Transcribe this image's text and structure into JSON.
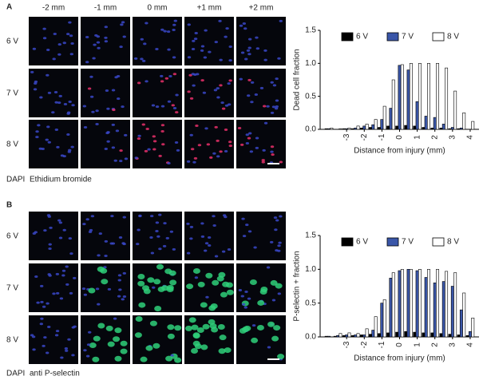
{
  "panels": [
    {
      "label": "A",
      "columns": [
        "-2 mm",
        "-1 mm",
        "0 mm",
        "+1 mm",
        "+2 mm"
      ],
      "rows": [
        "6 V",
        "7 V",
        "8 V"
      ],
      "stains": [
        "DAPI",
        "Ethidium bromide"
      ]
    },
    {
      "label": "B",
      "columns": [],
      "rows": [
        "6 V",
        "7 V",
        "8 V"
      ],
      "stains": [
        "DAPI",
        "anti P-selectin"
      ]
    }
  ],
  "chart_data": [
    {
      "type": "bar",
      "ylabel": "Dead cell fraction",
      "xlabel": "Distance from injury (mm)",
      "x": [
        -4,
        -3.5,
        -3,
        -2.5,
        -2,
        -1.5,
        -1,
        -0.5,
        0,
        0.5,
        1,
        1.5,
        2,
        2.5,
        3,
        3.5,
        4
      ],
      "xlim": [
        -4.5,
        4.5
      ],
      "xticks": [
        -3,
        -2,
        -1,
        {
          "value": 0,
          "label": "0",
          "color": "#e0261e"
        },
        1,
        2,
        3,
        4
      ],
      "ylim": [
        0,
        1.5
      ],
      "yticks": [
        {
          "value": 0,
          "label": "0.0"
        },
        0.5,
        {
          "value": 1,
          "label": "1.0"
        },
        1.5
      ],
      "legend": "top",
      "series": [
        {
          "name": "6 V",
          "color": "#000000",
          "values": [
            0.01,
            0,
            0.01,
            0.01,
            0.02,
            0.03,
            0.03,
            0.05,
            0.05,
            0.06,
            0.05,
            0.03,
            0.02,
            0.02,
            0.01,
            0.01,
            0
          ]
        },
        {
          "name": "7 V",
          "color": "#3a56a8",
          "values": [
            0.01,
            0,
            0.01,
            0.02,
            0.05,
            0.07,
            0.15,
            0.32,
            0.97,
            0.9,
            0.42,
            0.2,
            0.18,
            0.08,
            0.03,
            0.02,
            0
          ]
        },
        {
          "name": "8 V",
          "color": "#ffffff",
          "values": [
            0.02,
            0.01,
            0.02,
            0.05,
            0.08,
            0.15,
            0.35,
            0.75,
            0.98,
            1.0,
            1.0,
            1.0,
            1.0,
            0.93,
            0.58,
            0.25,
            0.12
          ]
        }
      ]
    },
    {
      "type": "bar",
      "ylabel": "P-selectin + fraction",
      "xlabel": "Distance from injury (mm)",
      "x": [
        -4,
        -3.5,
        -3,
        -2.5,
        -2,
        -1.5,
        -1,
        -0.5,
        0,
        0.5,
        1,
        1.5,
        2,
        2.5,
        3,
        3.5,
        4
      ],
      "xlim": [
        -4.5,
        4.5
      ],
      "xticks": [
        -3,
        -2,
        -1,
        {
          "value": 0,
          "label": "0",
          "color": "#e0261e"
        },
        1,
        2,
        3,
        4
      ],
      "ylim": [
        0,
        1.5
      ],
      "yticks": [
        {
          "value": 0,
          "label": "0.0"
        },
        0.5,
        {
          "value": 1,
          "label": "1.0"
        },
        1.5
      ],
      "legend": "top",
      "series": [
        {
          "name": "6 V",
          "color": "#000000",
          "values": [
            0.01,
            0.01,
            0.02,
            0.02,
            0.03,
            0.04,
            0.05,
            0.06,
            0.07,
            0.08,
            0.07,
            0.06,
            0.06,
            0.05,
            0.04,
            0.03,
            0.02
          ]
        },
        {
          "name": "7 V",
          "color": "#3a56a8",
          "values": [
            0.01,
            0.02,
            0.03,
            0.03,
            0.03,
            0.1,
            0.5,
            0.87,
            0.98,
            1.0,
            0.98,
            0.88,
            0.8,
            0.82,
            0.75,
            0.4,
            0.08
          ]
        },
        {
          "name": "8 V",
          "color": "#ffffff",
          "values": [
            0,
            0.05,
            0.06,
            0.05,
            0.12,
            0.3,
            0.55,
            0.95,
            1.0,
            1.0,
            1.0,
            1.0,
            1.0,
            0.97,
            0.95,
            0.65,
            0.28
          ]
        }
      ]
    }
  ]
}
